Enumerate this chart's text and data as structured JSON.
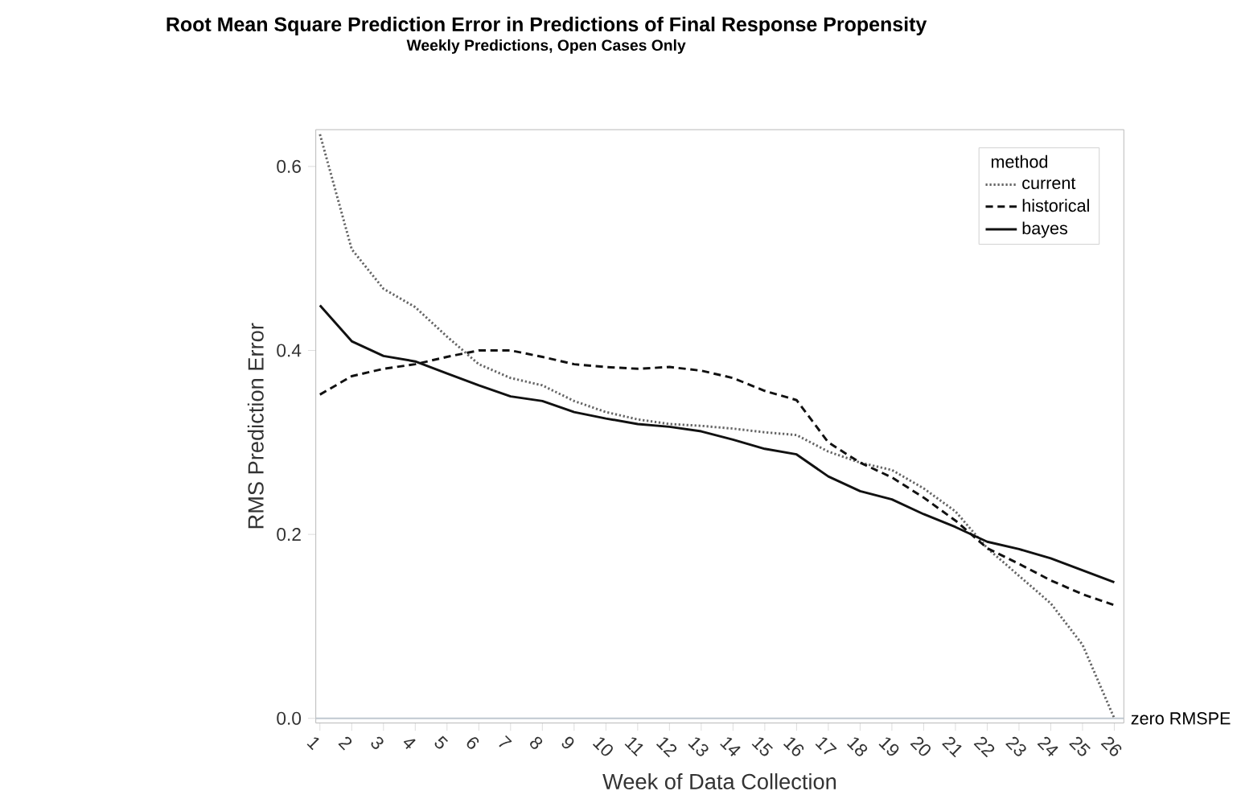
{
  "chart_data": {
    "type": "line",
    "title": "Root Mean Square Prediction Error in Predictions of Final Response Propensity",
    "subtitle": "Weekly Predictions, Open Cases Only",
    "xlabel": "Week of Data Collection",
    "ylabel": "RMS Prediction Error",
    "legend_title": "method",
    "legend": "top right",
    "grid": false,
    "marker": "none",
    "categories": [
      "1",
      "2",
      "3",
      "4",
      "5",
      "6",
      "7",
      "8",
      "9",
      "10",
      "11",
      "12",
      "13",
      "14",
      "15",
      "16",
      "17",
      "18",
      "19",
      "20",
      "21",
      "22",
      "23",
      "24",
      "25",
      "26"
    ],
    "ylim": [
      -0.005,
      0.64
    ],
    "yticks": [
      {
        "value": 0,
        "label": "0.0"
      },
      0.2,
      0.4,
      0.6
    ],
    "series": [
      {
        "name": "current",
        "color": "#666666",
        "line_style": "dotted",
        "values": [
          0.635,
          0.51,
          0.467,
          0.447,
          0.415,
          0.385,
          0.37,
          0.362,
          0.345,
          0.333,
          0.325,
          0.32,
          0.318,
          0.315,
          0.311,
          0.308,
          0.29,
          0.278,
          0.27,
          0.25,
          0.225,
          0.185,
          0.155,
          0.125,
          0.08,
          0.0
        ]
      },
      {
        "name": "historical",
        "color": "#111111",
        "line_style": "dashed",
        "values": [
          0.352,
          0.372,
          0.38,
          0.385,
          0.393,
          0.4,
          0.4,
          0.393,
          0.385,
          0.382,
          0.38,
          0.382,
          0.378,
          0.37,
          0.356,
          0.346,
          0.3,
          0.278,
          0.262,
          0.24,
          0.215,
          0.185,
          0.168,
          0.15,
          0.135,
          0.123
        ]
      },
      {
        "name": "bayes",
        "color": "#111111",
        "line_style": "solid",
        "values": [
          0.449,
          0.41,
          0.394,
          0.388,
          0.375,
          0.362,
          0.35,
          0.345,
          0.333,
          0.326,
          0.32,
          0.317,
          0.312,
          0.303,
          0.293,
          0.287,
          0.263,
          0.247,
          0.238,
          0.222,
          0.208,
          0.192,
          0.184,
          0.174,
          0.161,
          0.148
        ]
      }
    ],
    "ref_lines": [
      {
        "axis": "y",
        "value": 0,
        "label": "zero RMSPE",
        "color": "#c0c8d0"
      }
    ]
  }
}
